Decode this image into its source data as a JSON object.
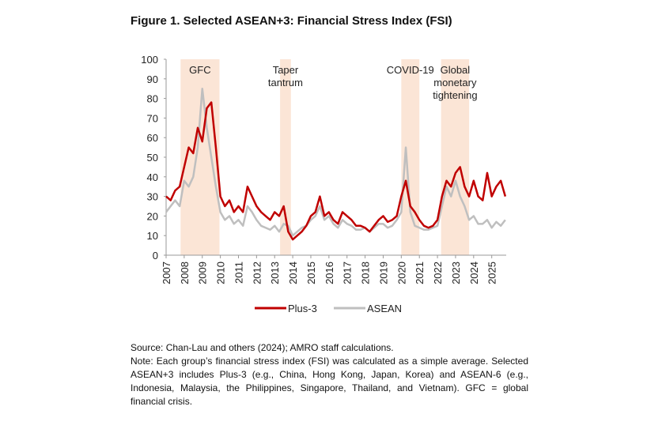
{
  "chart_data": {
    "type": "line",
    "title": "Figure 1. Selected ASEAN+3: Financial Stress Index (FSI)",
    "x": [
      2007,
      2007.25,
      2007.5,
      2007.75,
      2008,
      2008.25,
      2008.5,
      2008.75,
      2009,
      2009.25,
      2009.5,
      2009.75,
      2010,
      2010.25,
      2010.5,
      2010.75,
      2011,
      2011.25,
      2011.5,
      2011.75,
      2012,
      2012.25,
      2012.5,
      2012.75,
      2013,
      2013.25,
      2013.5,
      2013.75,
      2014,
      2014.25,
      2014.5,
      2014.75,
      2015,
      2015.25,
      2015.5,
      2015.75,
      2016,
      2016.25,
      2016.5,
      2016.75,
      2017,
      2017.25,
      2017.5,
      2017.75,
      2018,
      2018.25,
      2018.5,
      2018.75,
      2019,
      2019.25,
      2019.5,
      2019.75,
      2020,
      2020.25,
      2020.5,
      2020.75,
      2021,
      2021.25,
      2021.5,
      2021.75,
      2022,
      2022.25,
      2022.5,
      2022.75,
      2023,
      2023.25,
      2023.5,
      2023.75,
      2024,
      2024.25,
      2024.5,
      2024.75,
      2025,
      2025.25,
      2025.5,
      2025.75
    ],
    "series": [
      {
        "name": "Plus-3",
        "color": "#c00000",
        "values": [
          30,
          28,
          33,
          35,
          45,
          55,
          52,
          65,
          58,
          75,
          78,
          55,
          30,
          25,
          28,
          22,
          25,
          22,
          35,
          30,
          25,
          22,
          20,
          18,
          22,
          20,
          25,
          12,
          8,
          10,
          12,
          15,
          20,
          22,
          30,
          20,
          22,
          18,
          16,
          22,
          20,
          18,
          15,
          15,
          14,
          12,
          15,
          18,
          20,
          17,
          18,
          20,
          30,
          38,
          25,
          22,
          18,
          15,
          14,
          15,
          18,
          30,
          38,
          35,
          42,
          45,
          35,
          30,
          38,
          30,
          28,
          42,
          30,
          35,
          38,
          30
        ]
      },
      {
        "name": "ASEAN",
        "color": "#bfbfbf",
        "values": [
          22,
          25,
          28,
          25,
          38,
          35,
          40,
          55,
          85,
          65,
          50,
          35,
          22,
          18,
          20,
          16,
          18,
          15,
          25,
          22,
          18,
          15,
          14,
          13,
          15,
          12,
          16,
          15,
          10,
          12,
          14,
          15,
          18,
          20,
          25,
          18,
          20,
          16,
          14,
          18,
          16,
          15,
          13,
          13,
          14,
          12,
          14,
          16,
          16,
          14,
          15,
          18,
          22,
          55,
          22,
          15,
          14,
          13,
          13,
          14,
          15,
          25,
          35,
          30,
          38,
          30,
          25,
          18,
          20,
          16,
          16,
          18,
          14,
          17,
          15,
          18
        ]
      }
    ],
    "xlim": [
      2007,
      2025.8
    ],
    "xticks": [
      2007,
      2008,
      2009,
      2010,
      2011,
      2012,
      2013,
      2014,
      2015,
      2016,
      2017,
      2018,
      2019,
      2020,
      2021,
      2022,
      2023,
      2024,
      2025
    ],
    "ylim": [
      0,
      100
    ],
    "yticks": [
      0,
      10,
      20,
      30,
      40,
      50,
      60,
      70,
      80,
      90,
      100
    ],
    "shaded": [
      {
        "label": [
          "GFC"
        ],
        "start": 2007.8,
        "end": 2009.95
      },
      {
        "label": [
          "Taper",
          "tantrum"
        ],
        "start": 2013.3,
        "end": 2013.9
      },
      {
        "label": [
          "COVID-19"
        ],
        "start": 2020.0,
        "end": 2021.0
      },
      {
        "label": [
          "Global",
          "monetary",
          "tightening"
        ],
        "start": 2022.2,
        "end": 2023.75
      }
    ],
    "shade_color": "#fbe5d6",
    "source": "Source: Chan-Lau and others (2024); AMRO staff calculations.",
    "note": "Note: Each group’s financial stress index (FSI) was calculated as a simple average. Selected ASEAN+3 includes Plus-3 (e.g., China, Hong Kong, Japan, Korea) and ASEAN-6 (e.g., Indonesia, Malaysia, the Philippines, Singapore, Thailand, and Vietnam). GFC = global financial crisis."
  }
}
